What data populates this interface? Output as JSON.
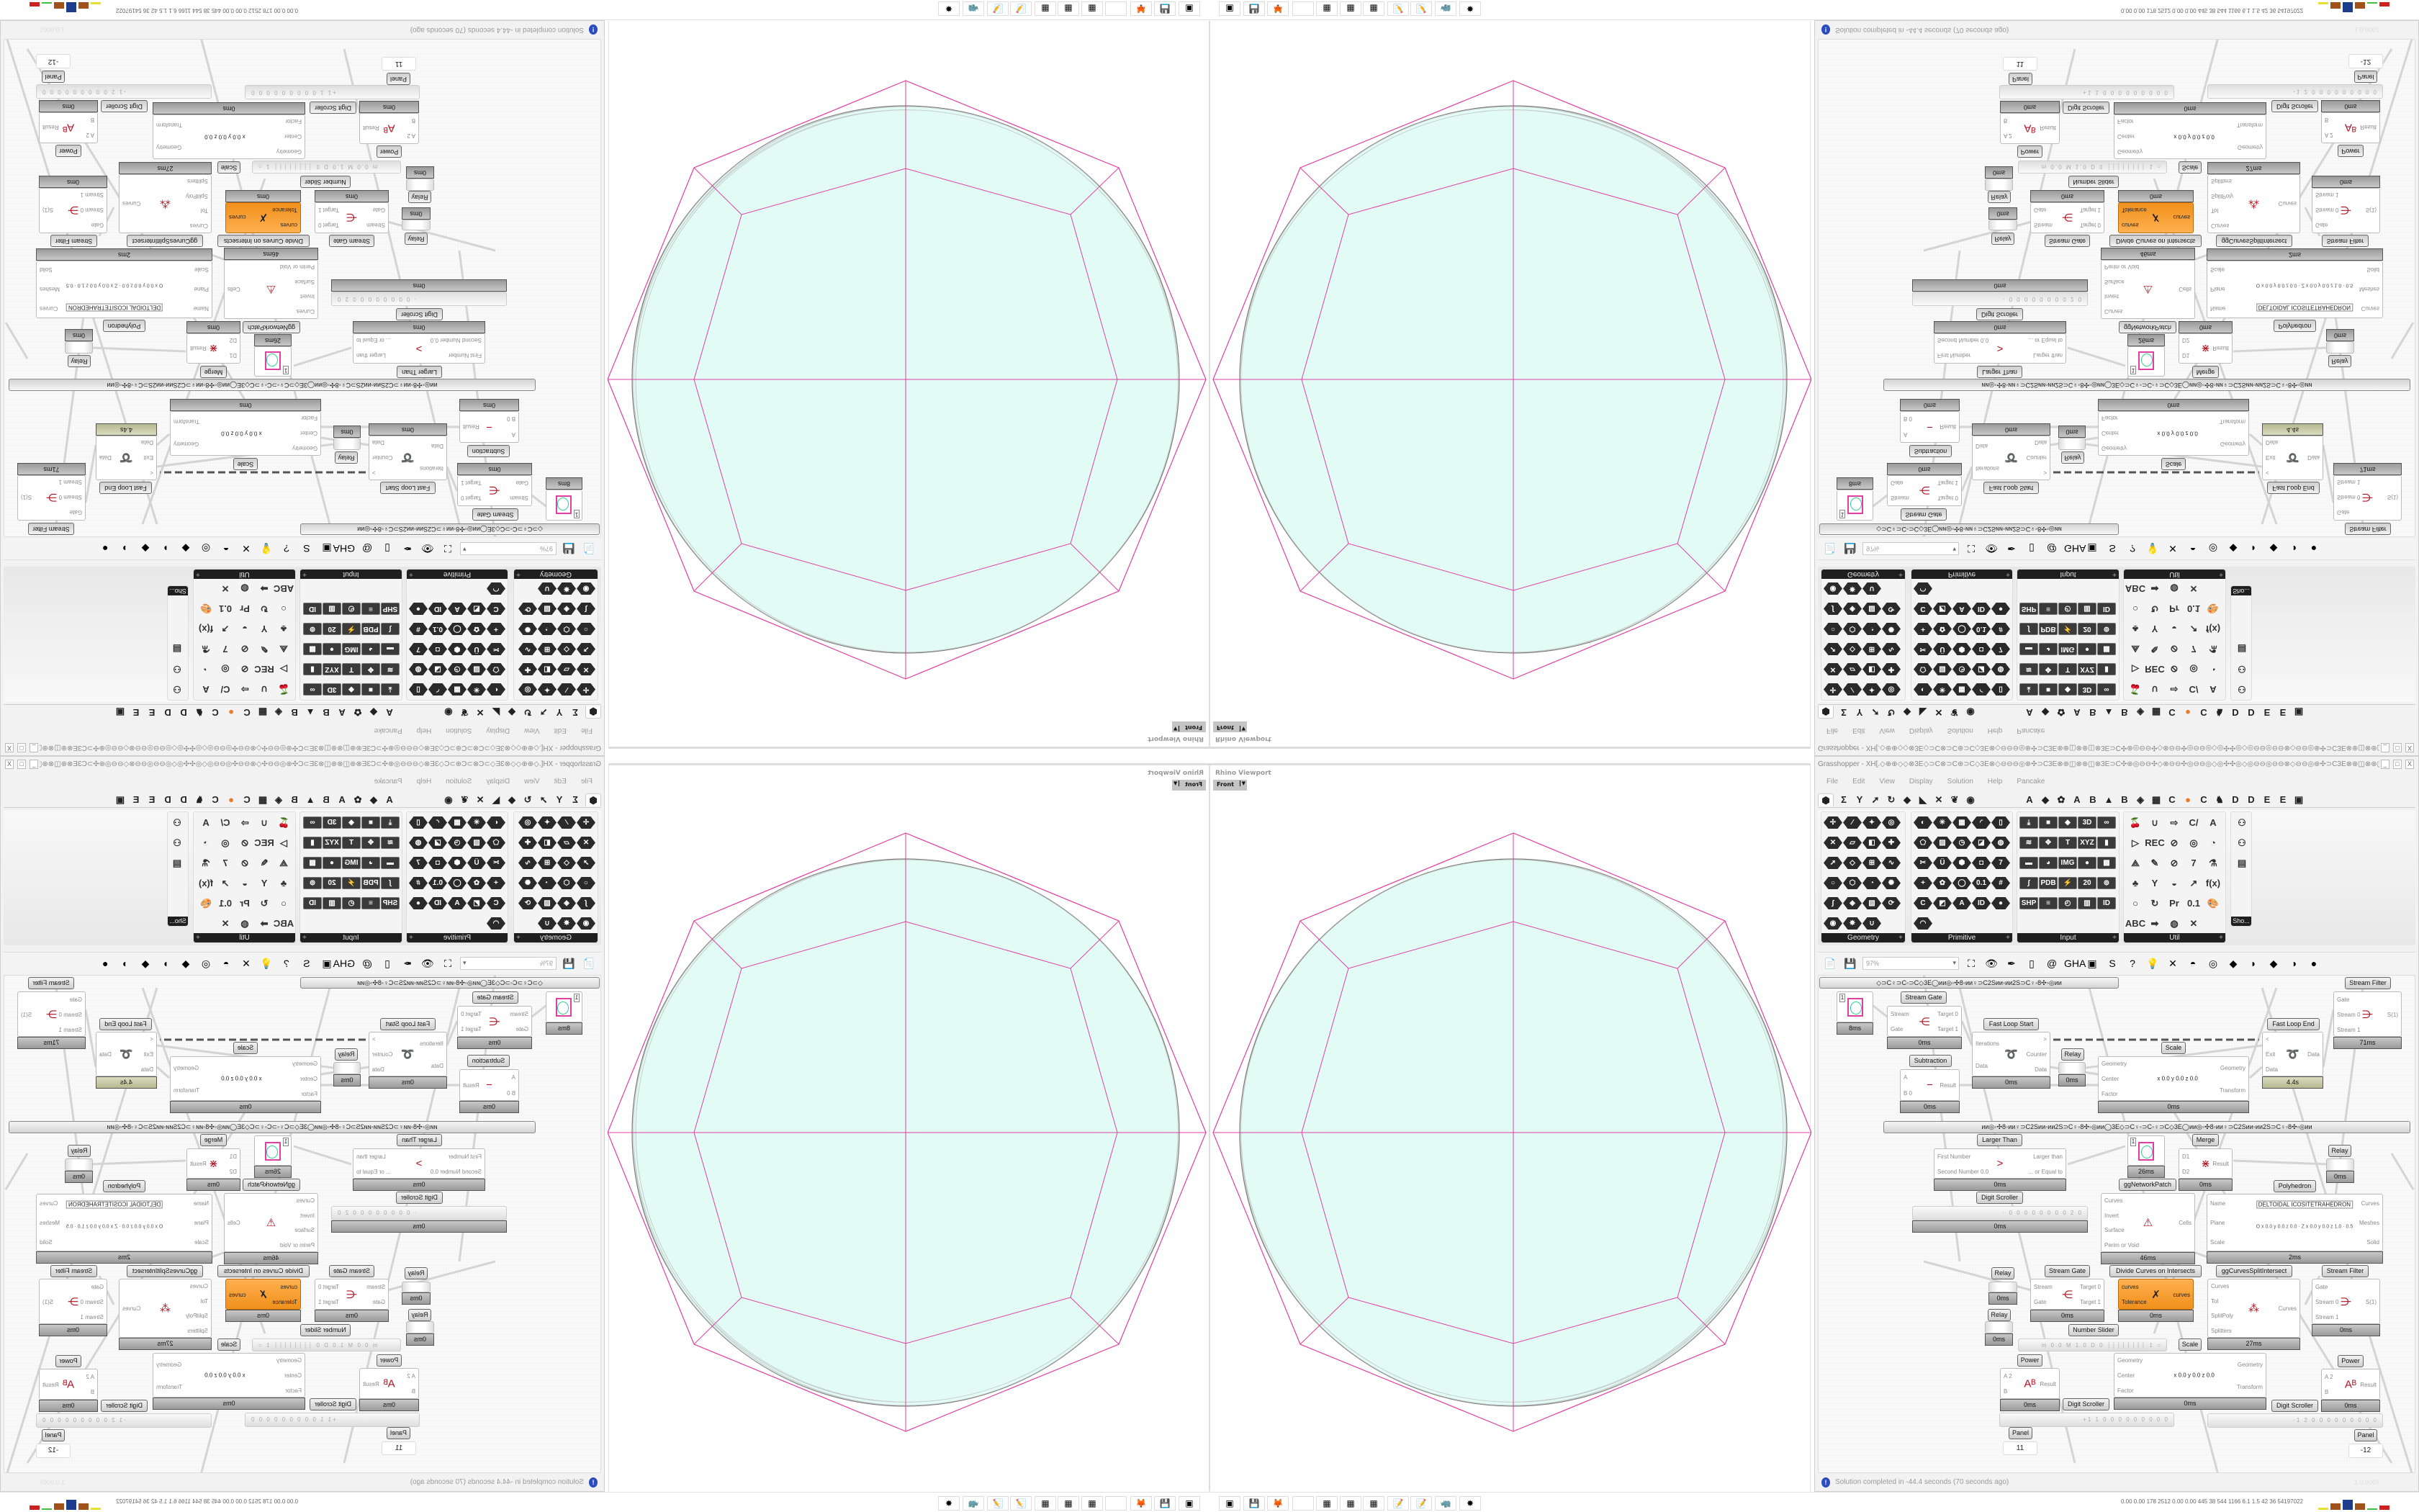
{
  "viewport": {
    "title": "Rhino Viewport",
    "view": "Front"
  },
  "drawing": {
    "fill": "#e2fcf5",
    "circle_stroke": "#c3c8c6",
    "boundary_stroke": "#777777",
    "guide_color": "#e040a0"
  },
  "gh": {
    "title": "Grasshopper - XH[.◇⊕⊕◇◇⊗3E◇⊃C⊗⊃C⊕⊃C◇3E⊗◇⊖⊖⊖◎⊕✣⊃C3E⊗⊕◫⊗⊕◫⊗3E⊃C✣⊕◎⊖⊖✣◇⊗⊖⊖✣◎⊖⊖◎◇◎✣✣◎◇◎⊖⊖◎⊖⊖⊗◇⊖⊖◎⊕✣⊃C3E⊗⊕◫⊗⊕◫...",
    "window_buttons": [
      "_",
      "□",
      "X"
    ],
    "menu": [
      "File",
      "Edit",
      "View",
      "Display",
      "Solution",
      "Help",
      "Pancake"
    ],
    "category_tabs": [
      "⬢",
      "Σ",
      "Y",
      "➚",
      "↻",
      "◆",
      "◣",
      "✕",
      "❦",
      "◉"
    ],
    "plugin_tabs": [
      "A",
      "◆",
      "✿",
      "A",
      "B",
      "▲",
      "B",
      "◈",
      "▦",
      "C",
      "●",
      "C",
      "♞",
      "D",
      "D",
      "E",
      "E",
      "▣"
    ],
    "panels": [
      {
        "label": "Geometry",
        "style": "hex",
        "cols": 4,
        "icons": [
          "✢",
          "∕",
          "✦",
          "◎",
          "✕",
          "▱",
          "◧",
          "✚",
          "➚",
          "◇",
          "⊞",
          "∿",
          "○",
          "⬡",
          "◔",
          "✺",
          "∫",
          "◈",
          "▧",
          "⟳",
          "◉",
          "✵",
          "∪"
        ]
      },
      {
        "label": "Primitive",
        "style": "hex",
        "cols": 5,
        "icons": [
          "◐",
          "✳",
          "▦",
          "◜",
          "▯",
          "⬠",
          "▨",
          "◷",
          "◪",
          "◍",
          "✂",
          "Ü",
          "⬢",
          "◘",
          "7",
          "+",
          "✿",
          "◯",
          "0.1",
          "#",
          "C",
          "◩",
          "A",
          "ID",
          "●",
          "◠"
        ]
      },
      {
        "label": "Input",
        "style": "sq",
        "cols": 5,
        "icons": [
          "⤓",
          "■",
          "◆",
          "3D",
          "∞",
          "≋",
          "✥",
          "T",
          "XYZ",
          "▮",
          "▬",
          "◕",
          "IMG",
          "●",
          "▩",
          "∫",
          "PDB",
          "⚡",
          "20",
          "⊚",
          "SHP",
          "≡",
          "◴",
          "▥",
          "ID"
        ]
      },
      {
        "label": "Util",
        "style": "ut",
        "cols": 5,
        "icons": [
          "🍒",
          "∪",
          "⇨",
          "C/",
          "A",
          "▷",
          "REC",
          "⊘",
          "◎",
          "◔",
          "⟁",
          "✎",
          "⊘",
          "7",
          "⚗",
          "♣",
          "Y",
          "◒",
          "↗",
          "f(x)",
          "○",
          "↻",
          "Pr",
          "0.1",
          "🎨",
          "ABC",
          "➡",
          "◍",
          "✕"
        ]
      }
    ],
    "show_panel": {
      "label": "Sho...",
      "icons": [
        "⚇",
        "⚇",
        "▤"
      ]
    },
    "toolbar": {
      "zoom": "97%",
      "icons": [
        "📄",
        "💾",
        "⛶",
        "👁",
        "✒",
        "▯",
        "@",
        "GHA",
        "▣",
        "S",
        "?",
        "💡",
        "✕",
        "◓",
        "◎",
        "◆",
        "◗",
        "◆",
        "◑",
        "●"
      ]
    },
    "group_bar_text": "◇⊃C♀⊃C◦⊃C◇3E◯ᴎᴎ◎◦✣8◦ᴎᴎ♀⊃C2Sᴎᴎ◦ᴎᴎ2S⊃C♀◦8✣◦◎ᴎᴎ",
    "group_bar_text_2": "ᴎᴎ◎◦✣8◦ᴎᴎ♀⊃C2Sᴎᴎ◦ᴎᴎ2S⊃C♀◦8✣◦◎ᴎᴎ◯3E◇⊃C♀◦⊃C◦♀⊃C◇3E◯ᴎᴎ◎◦✣8◦ᴎᴎ♀⊃C2Sᴎᴎ◦ᴎᴎ2S⊃C♀◦8✣◦◎ᴎᴎ",
    "nodes": [
      {
        "kind": "preview",
        "value": "1",
        "time": "8ms"
      },
      {
        "label": "Stream Gate",
        "inputs": [
          "Stream",
          "Gate"
        ],
        "outputs": [
          "Target 0",
          "Target 1"
        ],
        "glyph": "⋲",
        "time": "0ms"
      },
      {
        "label": "Fast Loop Start",
        "inputs": [
          "Iterations",
          "Data"
        ],
        "outputs": [
          ">",
          "Counter",
          "Data"
        ],
        "glyph": "➰",
        "time": "0ms"
      },
      {
        "label": "Relay",
        "kind": "relay",
        "time": "0ms"
      },
      {
        "label": "Subtraction",
        "inputs": [
          "A",
          "B 0"
        ],
        "outputs": [
          "Result"
        ],
        "glyph": "−",
        "time": "0ms"
      },
      {
        "label": "Scale",
        "inputs": [
          "Geometry",
          "Center",
          "Factor"
        ],
        "outputs": [
          "Geometry",
          "Transform"
        ],
        "extra": "x 0.0 y 0.0 z 0.0",
        "time": "0ms"
      },
      {
        "label": "Fast Loop End",
        "inputs": [
          "<",
          "Exit",
          "Data"
        ],
        "outputs": [
          "Data"
        ],
        "glyph": "➰",
        "time": "4.4s",
        "olive": true
      },
      {
        "label": "Stream Filter",
        "inputs": [
          "Gate",
          "Stream 0",
          "Stream 1"
        ],
        "outputs": [
          "S(1)"
        ],
        "glyph": "⋺",
        "time": "71ms"
      },
      {
        "label": "Larger Than",
        "inputs": [
          "First Number",
          "Second Number 0.0"
        ],
        "outputs": [
          "Larger than",
          "... or Equal to"
        ],
        "glyph": ">",
        "time": "0ms"
      },
      {
        "kind": "preview",
        "value": "1",
        "time": "26ms"
      },
      {
        "label": "Merge",
        "inputs": [
          "D1",
          "D2"
        ],
        "outputs": [
          "Result"
        ],
        "glyph": "⋇",
        "time": "0ms"
      },
      {
        "label": "Relay",
        "kind": "relay",
        "time": "0ms"
      },
      {
        "label": "Digit Scroller",
        "kind": "slider",
        "value": "· 0 0 0 0 0 0 0 0 2 0",
        "time": "0ms"
      },
      {
        "label": "Polyhedron",
        "inputs": [
          "Name",
          "Plane",
          "Scale"
        ],
        "outputs": [
          "Curves",
          "Meshes",
          "Solid"
        ],
        "extra": "DELTOIDAL ICOSITETRAHEDRON",
        "params": "O x 0.0 y 0.0 z 0.0 · Z x 0.0 y 0.0 z 1.0 · 0.5",
        "time": "2ms"
      },
      {
        "label": "ggNetworkPatch",
        "inputs": [
          "Curves",
          "Invert",
          "Surface",
          "Perim or Void"
        ],
        "outputs": [
          "Cells"
        ],
        "glyph": "⚠",
        "time": "46ms"
      },
      {
        "label": "Relay",
        "kind": "relay",
        "time": "0ms"
      },
      {
        "label": "Relay",
        "kind": "relay",
        "time": "0ms"
      },
      {
        "label": "Stream Gate",
        "inputs": [
          "Stream",
          "Gate"
        ],
        "outputs": [
          "Target 0",
          "Target 1"
        ],
        "glyph": "⋲",
        "time": "0ms"
      },
      {
        "label": "Divide Curves on Intersects",
        "inputs": [
          "curves",
          "Tolerance"
        ],
        "outputs": [
          "curves"
        ],
        "glyph": "✗",
        "time": "0ms",
        "orange": true
      },
      {
        "label": "ggCurvesSplitIntersect",
        "inputs": [
          "Curves",
          "Tol",
          "SplitPoly",
          "Splitters"
        ],
        "outputs": [
          "Curves"
        ],
        "glyph": "⁂",
        "time": "27ms"
      },
      {
        "label": "Stream Filter",
        "inputs": [
          "Gate",
          "Stream 0",
          "Stream 1"
        ],
        "outputs": [
          "S(1)"
        ],
        "glyph": "⋺",
        "time": "0ms"
      },
      {
        "label": "Number Slider",
        "kind": "slider",
        "value": "m 0.0 M 1.0 D 0 ┆┆┆┆┆┆┆┆ 1 ○"
      },
      {
        "label": "Scale",
        "inputs": [
          "Geometry",
          "Center",
          "Factor"
        ],
        "outputs": [
          "Geometry",
          "Transform"
        ],
        "extra": "x 0.0 y 0.0 z 0.0",
        "time": "0ms"
      },
      {
        "label": "Power",
        "inputs": [
          "A 2",
          "B"
        ],
        "outputs": [
          "Result"
        ],
        "glyph": "Aᴮ",
        "time": "0ms"
      },
      {
        "label": "Power",
        "inputs": [
          "A 2",
          "B"
        ],
        "outputs": [
          "Result"
        ],
        "glyph": "Aᴮ",
        "time": "0ms"
      },
      {
        "label": "Digit Scroller",
        "kind": "slider",
        "value": "+1 1 0 0 0 0 0 0 0 0 0"
      },
      {
        "label": "Digit Scroller",
        "kind": "slider",
        "value": "-1 2 0 0 0 0 0 0 0 0 0"
      },
      {
        "label": "Panel",
        "kind": "panel",
        "value": "11"
      },
      {
        "label": "Panel",
        "kind": "panel",
        "value": "-12"
      }
    ],
    "status": {
      "icon": "info-icon",
      "message": "Solution completed in -44.4 seconds (70 seconds ago)",
      "version": "1.0.0007"
    }
  },
  "taskbar": {
    "icons": [
      {
        "name": "process-monitor",
        "glyph": "▣"
      },
      {
        "name": "floppy-64",
        "glyph": "💾"
      },
      {
        "name": "firefox",
        "glyph": "🦊"
      },
      {
        "name": "blank-app",
        "glyph": " "
      },
      {
        "name": "calculator",
        "glyph": "▦"
      },
      {
        "name": "calculator",
        "glyph": "▦"
      },
      {
        "name": "calculator",
        "glyph": "▦"
      },
      {
        "name": "notepad",
        "glyph": "📝"
      },
      {
        "name": "notepad",
        "glyph": "📝"
      },
      {
        "name": "rhino",
        "glyph": "🦏"
      },
      {
        "name": "red-app",
        "glyph": "✸"
      }
    ],
    "readout": "0.00 0.00 178 2512 0.00 0.00 445  38  544 1166 6.1  1.5  42  36  54197022",
    "meter_colors": [
      "#e8e030",
      "#a0521a",
      "#1e3c8c",
      "#a0521a",
      "#40c040",
      "#d02020"
    ]
  }
}
